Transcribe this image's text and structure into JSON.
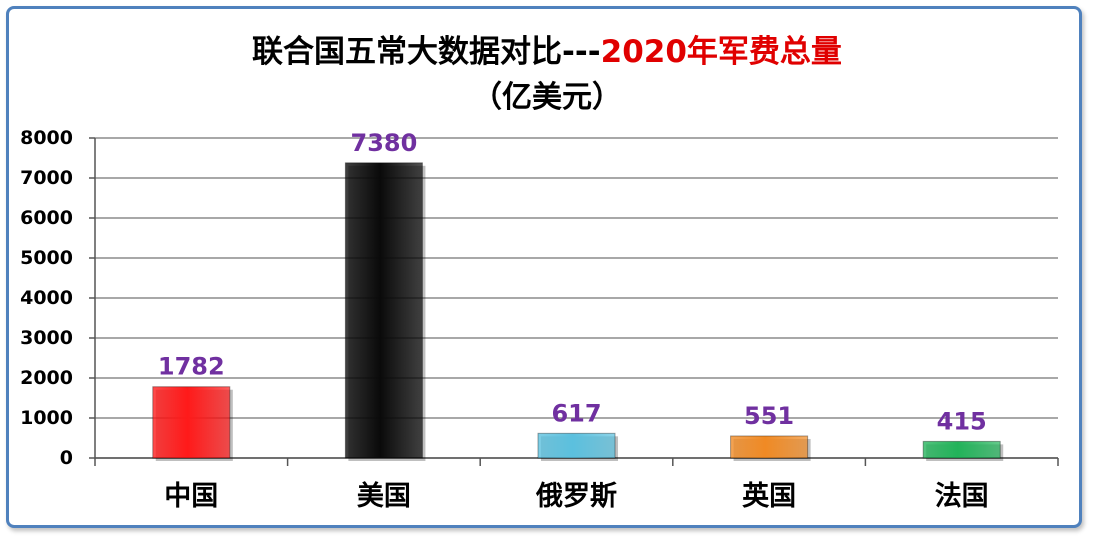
{
  "chart_data": {
    "type": "bar",
    "title_main": "联合国五常大数据对比---",
    "title_highlight": "2020年军费总量",
    "subtitle": "（亿美元）",
    "categories": [
      "中国",
      "美国",
      "俄罗斯",
      "英国",
      "法国"
    ],
    "values": [
      1782,
      7380,
      617,
      551,
      415
    ],
    "data_labels": [
      "1782",
      "7380",
      "617",
      "551",
      "415"
    ],
    "ylim": [
      0,
      8000
    ],
    "yticks": [
      0,
      1000,
      2000,
      3000,
      4000,
      5000,
      6000,
      7000,
      8000
    ],
    "grid": true,
    "legend": "none",
    "xlabel": "",
    "ylabel": "",
    "colors": {
      "bars": [
        "#ff1a1a",
        "#0a0a0a",
        "#5bc0de",
        "#f08a24",
        "#22b35a"
      ],
      "data_label": "#7030a0",
      "title_highlight": "#e00000",
      "frame": "#4f81bd",
      "grid": "#8c8c8c"
    }
  }
}
